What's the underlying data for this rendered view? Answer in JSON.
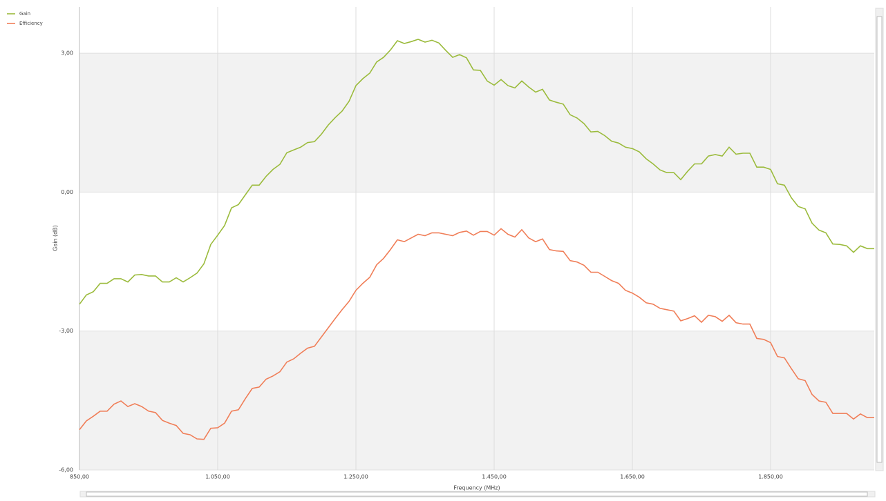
{
  "chart_data": {
    "type": "line",
    "xlabel": "Frequency (MHz)",
    "ylabel": "Gain (dB)",
    "x": [
      850,
      860,
      870,
      880,
      890,
      900,
      910,
      920,
      930,
      940,
      950,
      960,
      970,
      980,
      990,
      1000,
      1010,
      1020,
      1030,
      1040,
      1050,
      1060,
      1070,
      1080,
      1090,
      1100,
      1110,
      1120,
      1130,
      1140,
      1150,
      1160,
      1170,
      1180,
      1190,
      1200,
      1210,
      1220,
      1230,
      1240,
      1250,
      1260,
      1270,
      1280,
      1290,
      1300,
      1310,
      1320,
      1330,
      1340,
      1350,
      1360,
      1370,
      1380,
      1390,
      1400,
      1410,
      1420,
      1430,
      1440,
      1450,
      1460,
      1470,
      1480,
      1490,
      1500,
      1510,
      1520,
      1530,
      1540,
      1550,
      1560,
      1570,
      1580,
      1590,
      1600,
      1610,
      1620,
      1630,
      1640,
      1650,
      1660,
      1670,
      1680,
      1690,
      1700,
      1710,
      1720,
      1730,
      1740,
      1750,
      1760,
      1770,
      1780,
      1790,
      1800,
      1810,
      1820,
      1830,
      1840,
      1850,
      1860,
      1870,
      1880,
      1890,
      1900,
      1910,
      1920,
      1930,
      1940,
      1950,
      1960,
      1970,
      1980,
      1990,
      2000
    ],
    "series": [
      {
        "name": "Gain",
        "color": "#9bbb3c",
        "values": [
          -2.42,
          -2.22,
          -2.15,
          -1.97,
          -1.97,
          -1.87,
          -1.87,
          -1.94,
          -1.79,
          -1.78,
          -1.81,
          -1.81,
          -1.94,
          -1.94,
          -1.85,
          -1.94,
          -1.85,
          -1.75,
          -1.55,
          -1.13,
          -0.93,
          -0.72,
          -0.34,
          -0.27,
          -0.06,
          0.15,
          0.15,
          0.34,
          0.49,
          0.6,
          0.85,
          0.91,
          0.97,
          1.07,
          1.09,
          1.25,
          1.45,
          1.61,
          1.75,
          1.96,
          2.3,
          2.45,
          2.57,
          2.81,
          2.91,
          3.07,
          3.27,
          3.21,
          3.25,
          3.3,
          3.24,
          3.28,
          3.22,
          3.06,
          2.91,
          2.97,
          2.9,
          2.64,
          2.63,
          2.4,
          2.31,
          2.43,
          2.3,
          2.25,
          2.4,
          2.27,
          2.16,
          2.22,
          1.99,
          1.94,
          1.9,
          1.67,
          1.6,
          1.48,
          1.3,
          1.31,
          1.22,
          1.1,
          1.06,
          0.97,
          0.94,
          0.87,
          0.72,
          0.61,
          0.48,
          0.42,
          0.42,
          0.27,
          0.45,
          0.61,
          0.61,
          0.78,
          0.81,
          0.78,
          0.97,
          0.82,
          0.84,
          0.84,
          0.54,
          0.54,
          0.49,
          0.18,
          0.15,
          -0.12,
          -0.31,
          -0.36,
          -0.67,
          -0.82,
          -0.88,
          -1.12,
          -1.13,
          -1.16,
          -1.3,
          -1.16,
          -1.22,
          -1.22
        ]
      },
      {
        "name": "Efficiency",
        "color": "#f07e58",
        "values": [
          -5.13,
          -4.94,
          -4.84,
          -4.73,
          -4.73,
          -4.58,
          -4.51,
          -4.63,
          -4.57,
          -4.63,
          -4.73,
          -4.76,
          -4.93,
          -4.99,
          -5.04,
          -5.21,
          -5.24,
          -5.33,
          -5.34,
          -5.1,
          -5.09,
          -4.99,
          -4.73,
          -4.7,
          -4.46,
          -4.24,
          -4.21,
          -4.04,
          -3.97,
          -3.88,
          -3.67,
          -3.6,
          -3.48,
          -3.37,
          -3.33,
          -3.13,
          -2.93,
          -2.73,
          -2.54,
          -2.36,
          -2.12,
          -1.97,
          -1.84,
          -1.57,
          -1.43,
          -1.24,
          -1.03,
          -1.07,
          -0.99,
          -0.91,
          -0.94,
          -0.88,
          -0.88,
          -0.91,
          -0.94,
          -0.87,
          -0.84,
          -0.93,
          -0.85,
          -0.85,
          -0.93,
          -0.79,
          -0.91,
          -0.97,
          -0.81,
          -0.99,
          -1.07,
          -1.01,
          -1.24,
          -1.27,
          -1.28,
          -1.48,
          -1.51,
          -1.58,
          -1.73,
          -1.73,
          -1.82,
          -1.91,
          -1.97,
          -2.12,
          -2.18,
          -2.27,
          -2.39,
          -2.42,
          -2.51,
          -2.54,
          -2.57,
          -2.78,
          -2.73,
          -2.67,
          -2.81,
          -2.66,
          -2.69,
          -2.79,
          -2.66,
          -2.82,
          -2.85,
          -2.85,
          -3.16,
          -3.18,
          -3.25,
          -3.55,
          -3.58,
          -3.81,
          -4.03,
          -4.07,
          -4.37,
          -4.51,
          -4.54,
          -4.78,
          -4.78,
          -4.78,
          -4.9,
          -4.79,
          -4.87,
          -4.87
        ]
      }
    ],
    "xlim": [
      850,
      2000
    ],
    "xticks": [
      {
        "value": 850,
        "label": "850,00"
      },
      {
        "value": 1050,
        "label": "1.050,00"
      },
      {
        "value": 1250,
        "label": "1.250,00"
      },
      {
        "value": 1450,
        "label": "1.450,00"
      },
      {
        "value": 1650,
        "label": "1.650,00"
      },
      {
        "value": 1850,
        "label": "1.850,00"
      }
    ],
    "ylim": [
      -6,
      4
    ],
    "yticks": [
      {
        "value": -6,
        "label": "-6,00"
      },
      {
        "value": -3,
        "label": "-3,00"
      },
      {
        "value": 0,
        "label": "0,00"
      },
      {
        "value": 3,
        "label": "3,00"
      }
    ],
    "grid": true,
    "legend": "top-left"
  }
}
